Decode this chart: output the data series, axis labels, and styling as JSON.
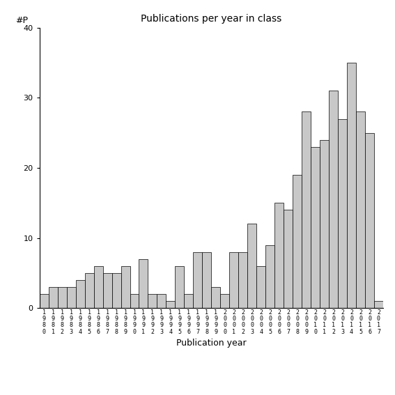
{
  "title": "Publications per year in class",
  "xlabel": "Publication year",
  "ylabel": "#P",
  "ylim": [
    0,
    40
  ],
  "yticks": [
    0,
    10,
    20,
    30,
    40
  ],
  "bar_color": "#c8c8c8",
  "bar_edgecolor": "#000000",
  "background_color": "#ffffff",
  "years": [
    "1980",
    "1981",
    "1982",
    "1983",
    "1984",
    "1985",
    "1986",
    "1987",
    "1988",
    "1989",
    "1990",
    "1991",
    "1992",
    "1993",
    "1994",
    "1995",
    "1996",
    "1997",
    "1998",
    "1999",
    "2000",
    "2001",
    "2002",
    "2003",
    "2004",
    "2005",
    "2006",
    "2007",
    "2008",
    "2009",
    "2010",
    "2011",
    "2012",
    "2013",
    "2014",
    "2015",
    "2016",
    "2017"
  ],
  "values": [
    2,
    3,
    3,
    3,
    4,
    5,
    6,
    5,
    5,
    6,
    2,
    7,
    2,
    2,
    1,
    6,
    2,
    8,
    8,
    3,
    2,
    8,
    8,
    12,
    6,
    9,
    15,
    14,
    19,
    28,
    23,
    24,
    31,
    27,
    35,
    28,
    25,
    1
  ]
}
